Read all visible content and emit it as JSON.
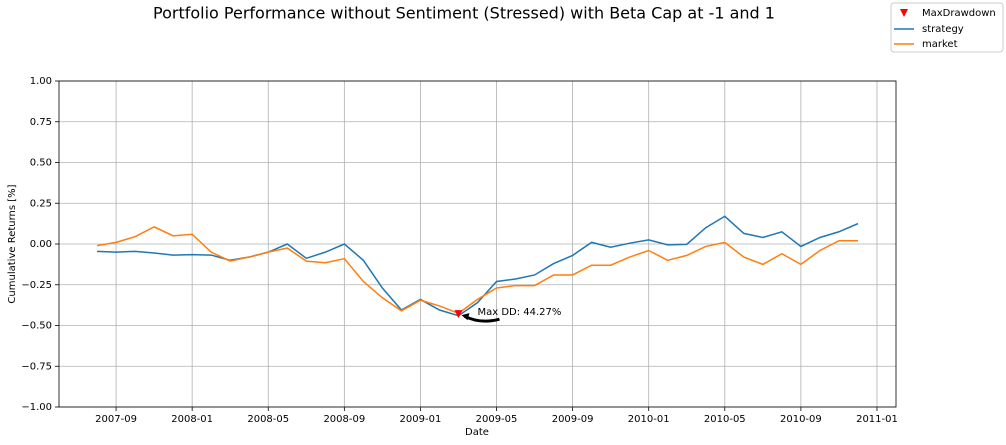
{
  "chart_data": {
    "type": "line",
    "title": "Portfolio Performance without Sentiment (Stressed) with Beta Cap at -1 and 1",
    "xlabel": "Date",
    "ylabel": "Cumulative Returns [%]",
    "x": [
      "2007-08",
      "2007-09",
      "2007-10",
      "2007-11",
      "2007-12",
      "2008-01",
      "2008-02",
      "2008-03",
      "2008-04",
      "2008-05",
      "2008-06",
      "2008-07",
      "2008-08",
      "2008-09",
      "2008-10",
      "2008-11",
      "2008-12",
      "2009-01",
      "2009-02",
      "2009-03",
      "2009-04",
      "2009-05",
      "2009-06",
      "2009-07",
      "2009-08",
      "2009-09",
      "2009-10",
      "2009-11",
      "2009-12",
      "2010-01",
      "2010-02",
      "2010-03",
      "2010-04",
      "2010-05",
      "2010-06",
      "2010-07",
      "2010-08",
      "2010-09",
      "2010-10",
      "2010-11",
      "2010-12"
    ],
    "series": [
      {
        "name": "strategy",
        "color": "#1f77b4",
        "values": [
          -0.045,
          -0.05,
          -0.045,
          -0.055,
          -0.068,
          -0.065,
          -0.068,
          -0.1,
          -0.08,
          -0.05,
          0.0,
          -0.088,
          -0.05,
          0.0,
          -0.1,
          -0.27,
          -0.405,
          -0.34,
          -0.405,
          -0.44,
          -0.36,
          -0.23,
          -0.215,
          -0.19,
          -0.12,
          -0.07,
          0.01,
          -0.02,
          0.005,
          0.025,
          -0.005,
          -0.002,
          0.1,
          0.17,
          0.065,
          0.04,
          0.075,
          -0.015,
          0.04,
          0.075,
          0.125
        ]
      },
      {
        "name": "market",
        "color": "#ff7f0e",
        "values": [
          -0.01,
          0.01,
          0.045,
          0.105,
          0.05,
          0.06,
          -0.05,
          -0.105,
          -0.08,
          -0.05,
          -0.025,
          -0.105,
          -0.115,
          -0.09,
          -0.23,
          -0.33,
          -0.41,
          -0.345,
          -0.38,
          -0.425,
          -0.34,
          -0.27,
          -0.255,
          -0.255,
          -0.19,
          -0.19,
          -0.13,
          -0.13,
          -0.08,
          -0.04,
          -0.1,
          -0.07,
          -0.015,
          0.01,
          -0.08,
          -0.125,
          -0.06,
          -0.125,
          -0.04,
          0.02,
          0.02
        ]
      }
    ],
    "max_drawdown": {
      "name": "MaxDrawdown",
      "color": "#ff0000",
      "x": "2009-03",
      "value": -0.4427,
      "annotation": "Max DD: 44.27%"
    },
    "xlim": [
      "2007-06",
      "2011-02"
    ],
    "xticks": [
      "2007-09",
      "2008-01",
      "2008-05",
      "2008-09",
      "2009-01",
      "2009-05",
      "2009-09",
      "2010-01",
      "2010-05",
      "2010-09",
      "2011-01"
    ],
    "ylim": [
      -1,
      1
    ],
    "yticks": [
      {
        "value": -1,
        "label": "−1.00"
      },
      {
        "value": -0.75,
        "label": "−0.75"
      },
      {
        "value": -0.5,
        "label": "−0.50"
      },
      {
        "value": -0.25,
        "label": "−0.25"
      },
      {
        "value": 0,
        "label": "0.00"
      },
      {
        "value": 0.25,
        "label": "0.25"
      },
      {
        "value": 0.5,
        "label": "0.50"
      },
      {
        "value": 0.75,
        "label": "0.75"
      },
      {
        "value": 1,
        "label": "1.00"
      }
    ],
    "grid": true,
    "legend": "upper right"
  }
}
